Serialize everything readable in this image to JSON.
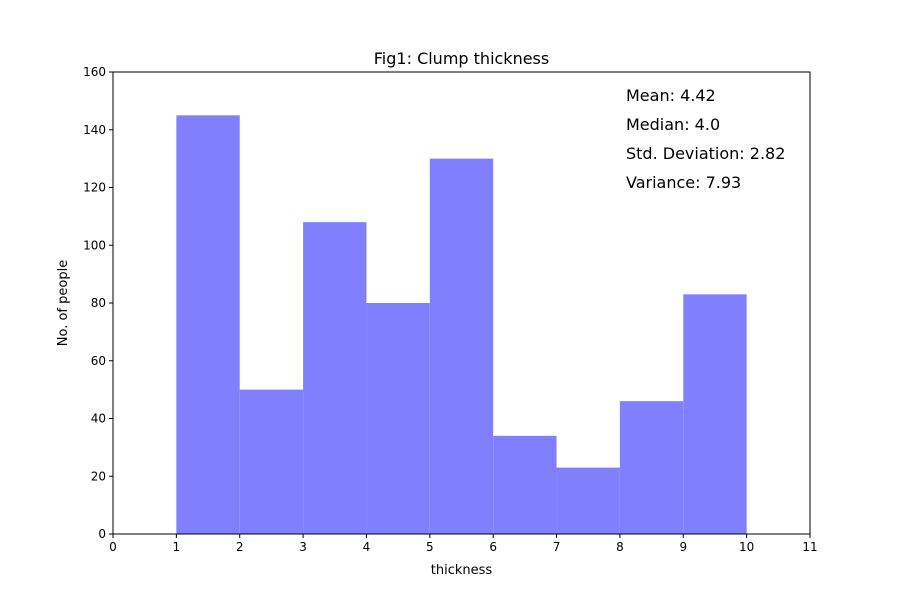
{
  "chart_data": {
    "type": "bar",
    "title": "Fig1: Clump thickness",
    "xlabel": "thickness",
    "ylabel": "No. of people",
    "bins": [
      {
        "start": 1,
        "end": 2,
        "value": 145
      },
      {
        "start": 2,
        "end": 3,
        "value": 50
      },
      {
        "start": 3,
        "end": 4,
        "value": 108
      },
      {
        "start": 4,
        "end": 5,
        "value": 80
      },
      {
        "start": 5,
        "end": 6,
        "value": 130
      },
      {
        "start": 6,
        "end": 7,
        "value": 34
      },
      {
        "start": 7,
        "end": 8,
        "value": 23
      },
      {
        "start": 8,
        "end": 9,
        "value": 46
      },
      {
        "start": 9,
        "end": 10,
        "value": 83
      }
    ],
    "xlim": [
      0,
      11
    ],
    "ylim": [
      0,
      160
    ],
    "xticks": [
      "0",
      "1",
      "2",
      "3",
      "4",
      "5",
      "6",
      "7",
      "8",
      "9",
      "10",
      "11"
    ],
    "yticks": [
      "0",
      "20",
      "40",
      "60",
      "80",
      "100",
      "120",
      "140",
      "160"
    ],
    "bar_color": "#8080ff",
    "grid": false,
    "annotations": [
      "Mean: 4.42",
      "Median: 4.0",
      "Std. Deviation: 2.82",
      "Variance: 7.93"
    ]
  }
}
